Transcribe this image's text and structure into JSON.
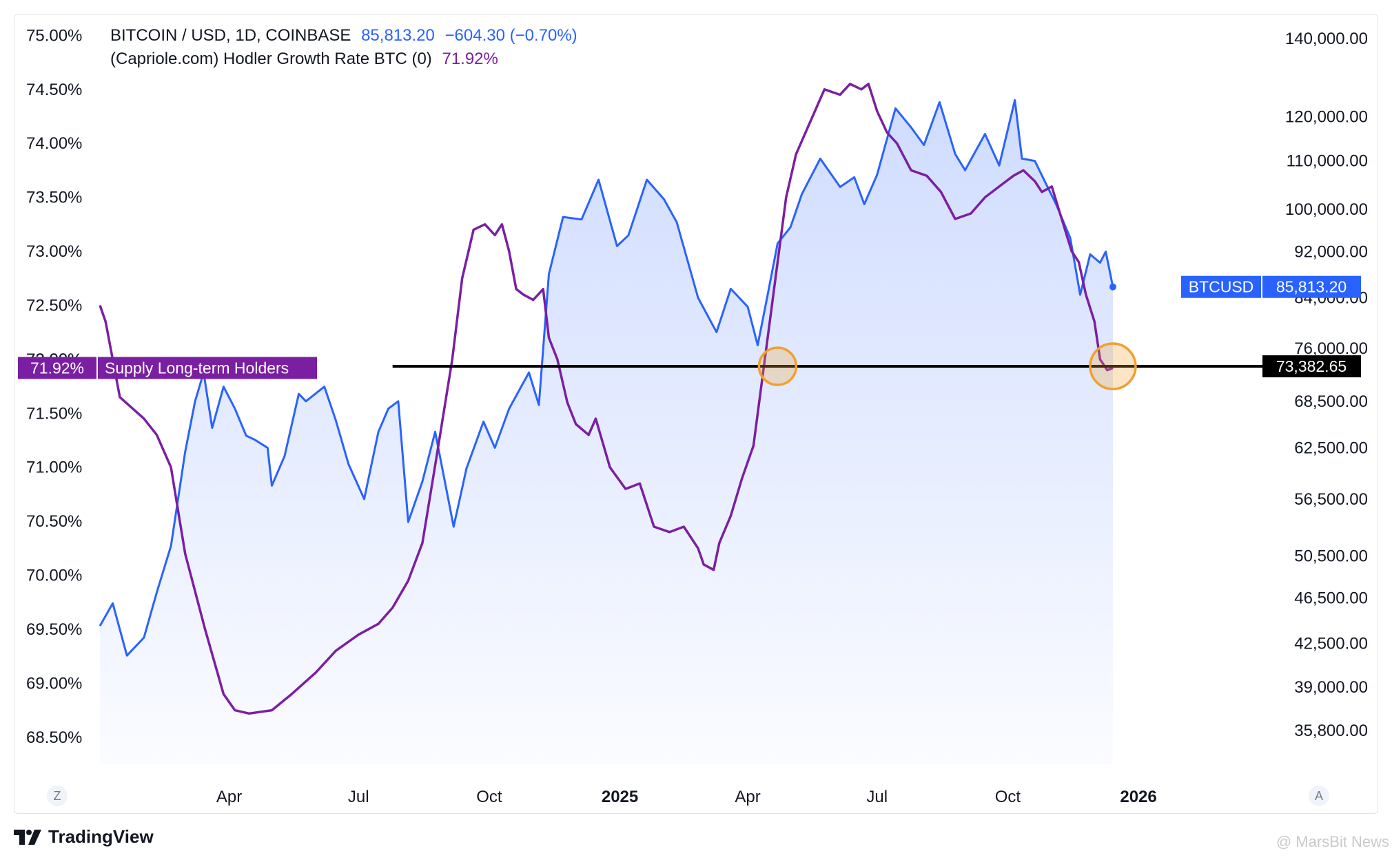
{
  "legend": {
    "btc_title": "BITCOIN / USD, 1D, COINBASE",
    "btc_value": "85,813.20",
    "btc_change": "−604.30 (−0.70%)",
    "hodler_title": "(Capriole.com) Hodler Growth Rate BTC (0)",
    "hodler_value": "71.92%"
  },
  "left_axis": {
    "ticks": [
      "75.00%",
      "74.50%",
      "74.00%",
      "73.50%",
      "73.00%",
      "72.50%",
      "72.00%",
      "71.50%",
      "71.00%",
      "70.50%",
      "70.00%",
      "69.50%",
      "69.00%",
      "68.50%"
    ],
    "badge_value": "71.92%",
    "badge_label": "Supply Long-term Holders"
  },
  "right_axis": {
    "ticks": [
      "140,000.00",
      "120,000.00",
      "110,000.00",
      "100,000.00",
      "92,000.00",
      "84,000.00",
      "76,000.00",
      "68,500.00",
      "62,500.00",
      "56,500.00",
      "50,500.00",
      "46,500.00",
      "42,500.00",
      "39,000.00",
      "35,800.00"
    ],
    "btc_badge_label": "BTCUSD",
    "btc_badge_value": "85,813.20",
    "line_badge_value": "73,382.65"
  },
  "x_axis": {
    "labels": [
      "Apr",
      "Jul",
      "Oct",
      "2025",
      "Apr",
      "Jul",
      "Oct",
      "2026"
    ],
    "left_button": "Z",
    "right_button": "A"
  },
  "brand": {
    "name": "TradingView"
  },
  "watermark": "@ MarsBit News",
  "colors": {
    "btc_line": "#2962ff",
    "hodler_line": "#7b1fa2",
    "area_fill": "#2962ff",
    "hline": "#000000",
    "circle": "#f0a030"
  },
  "chart_data": {
    "type": "line",
    "series": [
      {
        "name": "BITCOIN / USD, 1D, COINBASE",
        "axis": "right",
        "scale": "log",
        "x": [
          "2024-01-01",
          "2024-01-10",
          "2024-01-20",
          "2024-02-01",
          "2024-02-10",
          "2024-02-20",
          "2024-03-01",
          "2024-03-08",
          "2024-03-14",
          "2024-03-20",
          "2024-03-28",
          "2024-04-05",
          "2024-04-13",
          "2024-04-19",
          "2024-04-28",
          "2024-05-01",
          "2024-05-10",
          "2024-05-20",
          "2024-05-25",
          "2024-06-07",
          "2024-06-15",
          "2024-06-24",
          "2024-07-05",
          "2024-07-15",
          "2024-07-22",
          "2024-07-29",
          "2024-08-05",
          "2024-08-15",
          "2024-08-24",
          "2024-09-06",
          "2024-09-15",
          "2024-09-27",
          "2024-10-05",
          "2024-10-15",
          "2024-10-29",
          "2024-11-05",
          "2024-11-12",
          "2024-11-22",
          "2024-12-05",
          "2024-12-17",
          "2024-12-30",
          "2025-01-07",
          "2025-01-20",
          "2025-02-01",
          "2025-02-10",
          "2025-02-25",
          "2025-03-10",
          "2025-03-20",
          "2025-04-01",
          "2025-04-08",
          "2025-04-15",
          "2025-04-22",
          "2025-05-01",
          "2025-05-09",
          "2025-05-22",
          "2025-06-05",
          "2025-06-15",
          "2025-06-22",
          "2025-07-01",
          "2025-07-14",
          "2025-07-25",
          "2025-08-03",
          "2025-08-14",
          "2025-08-25",
          "2025-09-01",
          "2025-09-15",
          "2025-09-25",
          "2025-10-06",
          "2025-10-11",
          "2025-10-20",
          "2025-11-04",
          "2025-11-14",
          "2025-11-21",
          "2025-11-28",
          "2025-12-05",
          "2025-12-09",
          "2025-12-14"
        ],
        "y": [
          44000,
          46000,
          41500,
          43000,
          47000,
          51500,
          62000,
          68500,
          72500,
          65000,
          70500,
          67500,
          64000,
          63500,
          62500,
          58000,
          61500,
          69500,
          68500,
          70500,
          66000,
          60500,
          56500,
          64500,
          67500,
          68500,
          54000,
          58500,
          64500,
          53500,
          60000,
          65800,
          62500,
          67500,
          72500,
          68000,
          88000,
          98500,
          98000,
          106000,
          93000,
          95000,
          106000,
          102000,
          97500,
          84000,
          78500,
          85500,
          82500,
          76500,
          84500,
          93500,
          96500,
          103000,
          110500,
          104500,
          106500,
          101000,
          107000,
          122000,
          117500,
          113500,
          123500,
          111500,
          108000,
          116000,
          109000,
          124000,
          110500,
          110000,
          101000,
          94500,
          84500,
          91500,
          90000,
          92000,
          85813
        ]
      },
      {
        "name": "(Capriole.com) Hodler Growth Rate BTC (0)",
        "axis": "left",
        "x": [
          "2024-01-01",
          "2024-01-05",
          "2024-01-15",
          "2024-02-01",
          "2024-02-10",
          "2024-02-20",
          "2024-03-01",
          "2024-03-15",
          "2024-03-28",
          "2024-04-05",
          "2024-04-15",
          "2024-05-01",
          "2024-05-15",
          "2024-06-01",
          "2024-06-15",
          "2024-07-01",
          "2024-07-15",
          "2024-07-25",
          "2024-08-05",
          "2024-08-15",
          "2024-08-25",
          "2024-09-05",
          "2024-09-12",
          "2024-09-20",
          "2024-09-28",
          "2024-10-05",
          "2024-10-10",
          "2024-10-15",
          "2024-10-20",
          "2024-10-25",
          "2024-11-01",
          "2024-11-08",
          "2024-11-12",
          "2024-11-18",
          "2024-11-25",
          "2024-12-01",
          "2024-12-10",
          "2024-12-15",
          "2024-12-25",
          "2025-01-05",
          "2025-01-15",
          "2025-01-25",
          "2025-02-05",
          "2025-02-15",
          "2025-02-25",
          "2025-03-01",
          "2025-03-08",
          "2025-03-12",
          "2025-03-20",
          "2025-03-28",
          "2025-04-05",
          "2025-04-12",
          "2025-04-20",
          "2025-04-28",
          "2025-05-05",
          "2025-05-15",
          "2025-05-25",
          "2025-06-05",
          "2025-06-12",
          "2025-06-20",
          "2025-06-25",
          "2025-07-01",
          "2025-07-08",
          "2025-07-15",
          "2025-07-25",
          "2025-08-05",
          "2025-08-15",
          "2025-08-25",
          "2025-09-05",
          "2025-09-15",
          "2025-09-25",
          "2025-10-05",
          "2025-10-12",
          "2025-10-20",
          "2025-10-25",
          "2025-11-01",
          "2025-11-08",
          "2025-11-15",
          "2025-11-20",
          "2025-11-25",
          "2025-12-01",
          "2025-12-05",
          "2025-12-10",
          "2025-12-14"
        ],
        "y": [
          72.5,
          72.35,
          71.65,
          71.45,
          71.3,
          71.0,
          70.2,
          69.5,
          68.9,
          68.75,
          68.72,
          68.75,
          68.9,
          69.1,
          69.3,
          69.45,
          69.55,
          69.7,
          69.95,
          70.3,
          71.1,
          72.0,
          72.75,
          73.2,
          73.25,
          73.15,
          73.25,
          73.0,
          72.65,
          72.6,
          72.55,
          72.65,
          72.2,
          72.0,
          71.6,
          71.4,
          71.3,
          71.45,
          71.0,
          70.8,
          70.85,
          70.45,
          70.4,
          70.45,
          70.25,
          70.1,
          70.05,
          70.3,
          70.55,
          70.9,
          71.2,
          71.9,
          72.7,
          73.5,
          73.9,
          74.2,
          74.5,
          74.45,
          74.55,
          74.5,
          74.55,
          74.3,
          74.1,
          74.0,
          73.75,
          73.7,
          73.55,
          73.3,
          73.35,
          73.5,
          73.6,
          73.7,
          73.75,
          73.65,
          73.55,
          73.6,
          73.3,
          73.0,
          72.9,
          72.6,
          72.35,
          72.0,
          71.9,
          71.92
        ]
      }
    ],
    "left_axis": {
      "min": 68.25,
      "max": 75.2,
      "unit": "%",
      "title": ""
    },
    "right_axis": {
      "min": 33500,
      "max": 147000,
      "scale": "log",
      "title": ""
    },
    "x_range": [
      "2024-01-01",
      "2025-12-31"
    ],
    "hline": {
      "value": 73382.65,
      "axis": "right",
      "from": "2024-07-25"
    },
    "highlight_circles": [
      {
        "x": "2025-04-22",
        "y": 73382.65
      },
      {
        "x": "2025-12-14",
        "y": 73382.65
      }
    ],
    "grid": false,
    "legend": "top-left"
  }
}
